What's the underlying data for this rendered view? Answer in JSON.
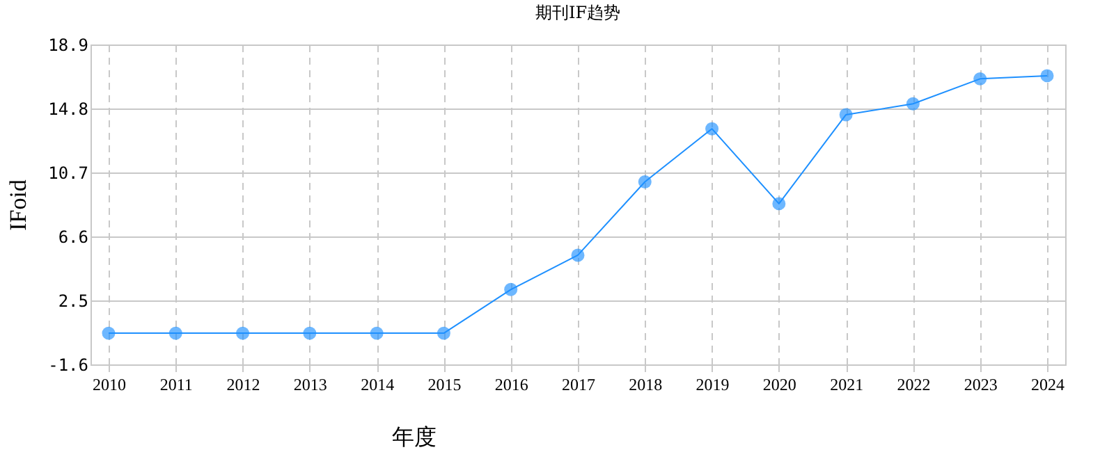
{
  "chart_data": {
    "type": "line",
    "title": "期刊IF趋势",
    "xlabel": "年度",
    "ylabel": "IFoid",
    "categories": [
      "2010",
      "2011",
      "2012",
      "2013",
      "2014",
      "2015",
      "2016",
      "2017",
      "2018",
      "2019",
      "2020",
      "2021",
      "2022",
      "2023",
      "2024"
    ],
    "series": [
      {
        "color": "#1e90ff",
        "values": [
          0.4,
          0.4,
          0.4,
          0.4,
          0.4,
          0.4,
          3.2,
          5.4,
          10.1,
          13.5,
          8.7,
          14.4,
          15.1,
          16.7,
          16.9
        ]
      }
    ],
    "ylim": [
      -1.6,
      18.9
    ],
    "yticks": [
      -1.6,
      2.5,
      6.6,
      10.7,
      14.8,
      18.9
    ],
    "grid": true,
    "marker": "circle",
    "line_style": "solid"
  }
}
